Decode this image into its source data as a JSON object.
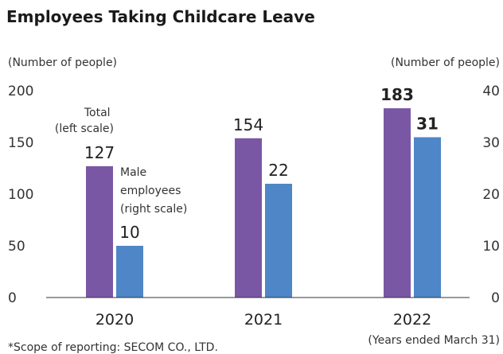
{
  "chart_data": {
    "type": "bar",
    "title": "Employees Taking Childcare Leave",
    "categories": [
      "2020",
      "2021",
      "2022"
    ],
    "y_left": {
      "label": "(Number of people)",
      "ylim": [
        0,
        200
      ],
      "ticks": [
        "200",
        "150",
        "100",
        "50",
        "0"
      ]
    },
    "y_right": {
      "label": "(Number of people)",
      "ylim": [
        0,
        40
      ],
      "ticks": [
        "40",
        "30",
        "20",
        "10",
        "0"
      ]
    },
    "series": [
      {
        "name": "Total (left scale)",
        "axis": "left",
        "color": "#7a57a5",
        "values": [
          127,
          154,
          183
        ],
        "value_labels": [
          "127",
          "154",
          "183"
        ]
      },
      {
        "name": "Male employees (right scale)",
        "axis": "right",
        "color": "#4e86c7",
        "values": [
          10,
          22,
          31
        ],
        "value_labels": [
          "10",
          "22",
          "31"
        ]
      }
    ],
    "annotations": {
      "total_lines": [
        "Total",
        "(left scale)"
      ],
      "male_lines": [
        "Male",
        "employees",
        "(right scale)"
      ]
    },
    "xnote": "(Years ended March 31)",
    "footnote": "*Scope of reporting: SECOM CO., LTD.",
    "grid": false
  }
}
